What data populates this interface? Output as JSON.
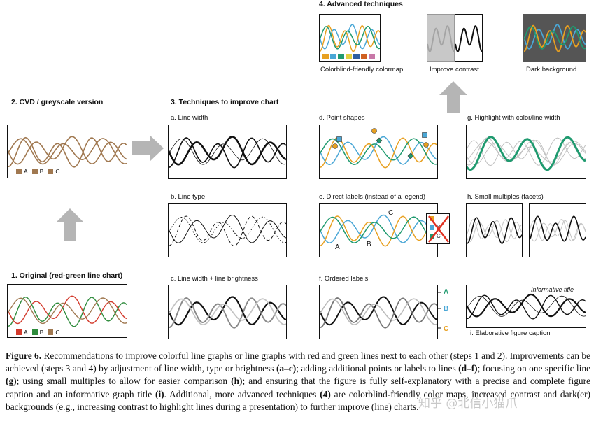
{
  "sections": {
    "s1": "1. Original (red-green line chart)",
    "s2": "2. CVD / greyscale version",
    "s3": "3. Techniques to improve chart",
    "s4": "4. Advanced techniques"
  },
  "panels": {
    "a": "a. Line width",
    "b": "b. Line type",
    "c": "c. Line width + line brightness",
    "d": "d. Point shapes",
    "e": "e. Direct labels (instead of a legend)",
    "f": "f. Ordered labels",
    "g": "g. Highlight with color/line width",
    "h": "h. Small multiples (facets)",
    "i": "i. Elaborative figure caption",
    "adv1": "Colorblind-friendly  colormap",
    "adv2": "Improve contrast",
    "adv3": "Dark background"
  },
  "legend": {
    "A": "A",
    "B": "B",
    "C": "C"
  },
  "informative_title": "Informative title",
  "caption": {
    "fig": "Figure 6.",
    "t1": " Recommendations to improve colorful line graphs or line graphs with red and green lines next to each other (steps 1 and 2). Improvements can be achieved (steps 3 and 4) by adjustment of line width, type or brightness ",
    "b1": "(a–c)",
    "t2": "; adding additional points or labels to lines ",
    "b2": "(d–f)",
    "t3": "; focusing on one specific line ",
    "b3": "(g)",
    "t4": "; using small multiples to allow for easier comparison ",
    "b4": "(h)",
    "t5": "; and ensuring that the figure is fully self-explanatory with a precise and complete figure caption and an informative graph title ",
    "b5": "(i)",
    "t6": ". Additional, more advanced techniques ",
    "b6": "(4)",
    "t7": " are colorblind-friendly color maps, increased contrast and dark(er) backgrounds (e.g., increasing contrast to highlight lines during a presentation) to further improve (line) charts."
  },
  "watermark": "知乎 @北信小猫爪",
  "colors": {
    "red": "#d33a2c",
    "green": "#2e8b3c",
    "brown": "#a07850",
    "blue": "#4aa7d6",
    "orange": "#e8a020",
    "teal": "#1f9a6f",
    "gray": "#b0b0b0",
    "darkbg": "#555555"
  }
}
